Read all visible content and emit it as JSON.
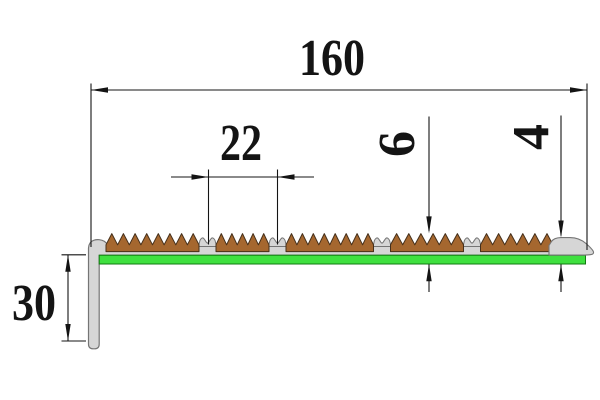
{
  "drawing": {
    "type": "technical-cross-section",
    "subject": "aluminum anti-slip stair nosing profile with rubber inserts",
    "insert_segment_count": 5,
    "dimensions": {
      "overall_width": {
        "label": "160",
        "unit_hint": "mm",
        "orientation": "horizontal"
      },
      "insert_spacing": {
        "label": "22",
        "unit_hint": "mm",
        "orientation": "horizontal"
      },
      "total_height": {
        "label": "6",
        "unit_hint": "mm",
        "orientation": "vertical"
      },
      "base_height": {
        "label": "4",
        "unit_hint": "mm",
        "orientation": "vertical"
      },
      "leg_height": {
        "label": "30",
        "unit_hint": "mm",
        "orientation": "vertical"
      }
    },
    "colors": {
      "background": "#ffffff",
      "dimension_line": "#141414",
      "aluminum_fill": "#d6d6d6",
      "aluminum_stroke": "#757575",
      "insert_fill": "#a5672f",
      "insert_stroke": "#46301b",
      "tape_fill": "#3fe03f",
      "tape_stroke": "#117a11"
    }
  }
}
